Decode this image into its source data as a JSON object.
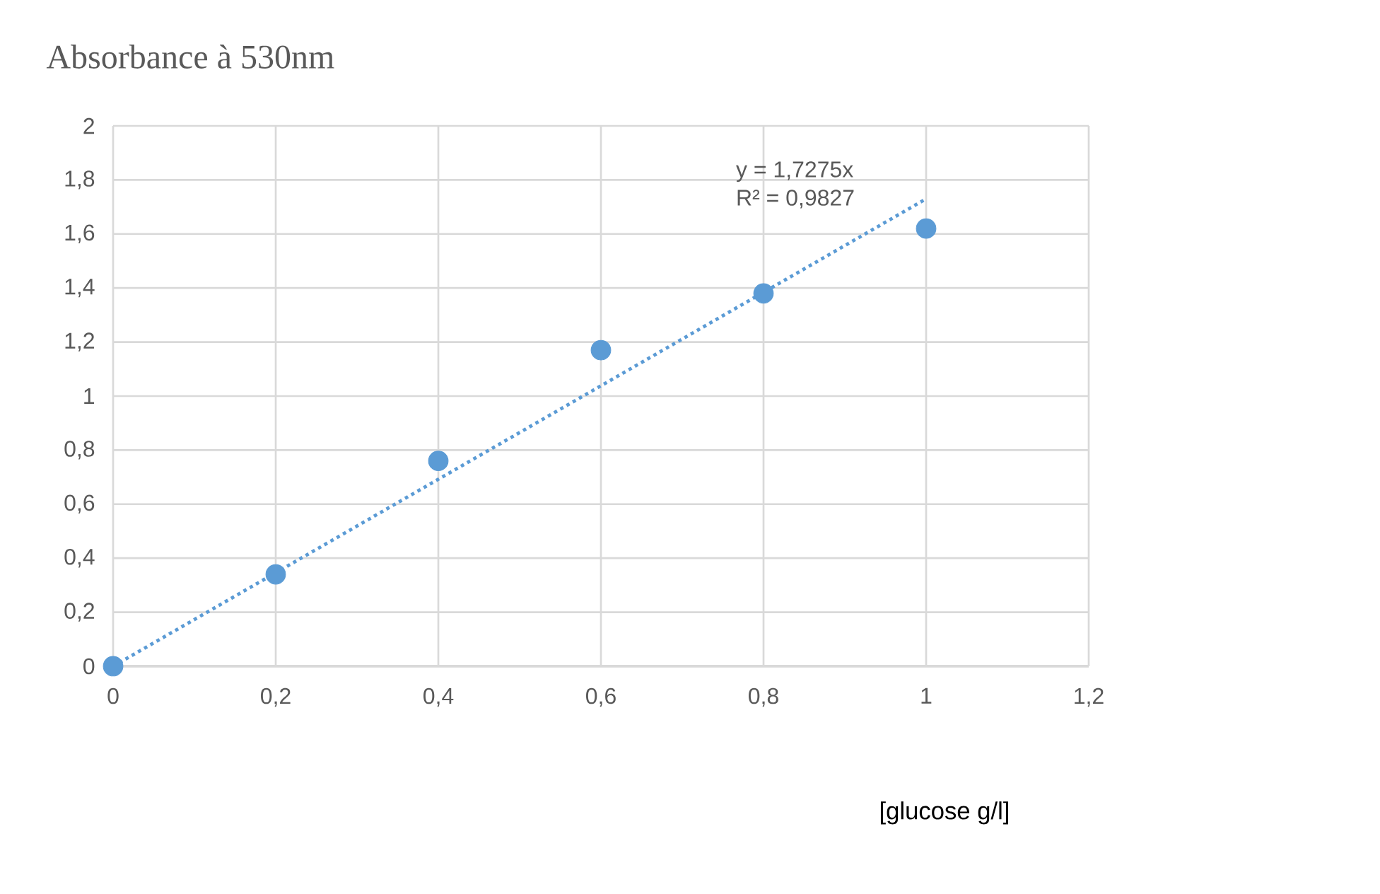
{
  "chart_data": {
    "type": "scatter",
    "title": "Absorbance à 530nm",
    "xlabel": "[glucose g/l]",
    "xlim": [
      0,
      1.2
    ],
    "ylim": [
      0,
      2
    ],
    "xticks": [
      0,
      {
        "value": 0.2,
        "label": "0,2"
      },
      {
        "value": 0.4,
        "label": "0,4"
      },
      {
        "value": 0.6,
        "label": "0,6"
      },
      {
        "value": 0.8,
        "label": "0,8"
      },
      1,
      {
        "value": 1.2,
        "label": "1,2"
      }
    ],
    "yticks": [
      0,
      {
        "value": 0.2,
        "label": "0,2"
      },
      {
        "value": 0.4,
        "label": "0,4"
      },
      {
        "value": 0.6,
        "label": "0,6"
      },
      {
        "value": 0.8,
        "label": "0,8"
      },
      1,
      {
        "value": 1.2,
        "label": "1,2"
      },
      {
        "value": 1.4,
        "label": "1,4"
      },
      {
        "value": 1.6,
        "label": "1,6"
      },
      {
        "value": 1.8,
        "label": "1,8"
      },
      2
    ],
    "grid": true,
    "series": [
      {
        "color": "#5b9bd5",
        "marker": "circle",
        "x": [
          0,
          0.2,
          0.4,
          0.6,
          0.8,
          1
        ],
        "values": [
          0,
          0.34,
          0.76,
          1.17,
          1.38,
          1.62
        ]
      },
      {
        "type": "line",
        "color": "#5b9bd5",
        "marker": "none",
        "line_style": "dotted",
        "x": [
          0,
          1
        ],
        "values": [
          0,
          1.73
        ]
      }
    ],
    "annotations": [
      "y = 1,7275x",
      "R² = 0,9827"
    ]
  }
}
